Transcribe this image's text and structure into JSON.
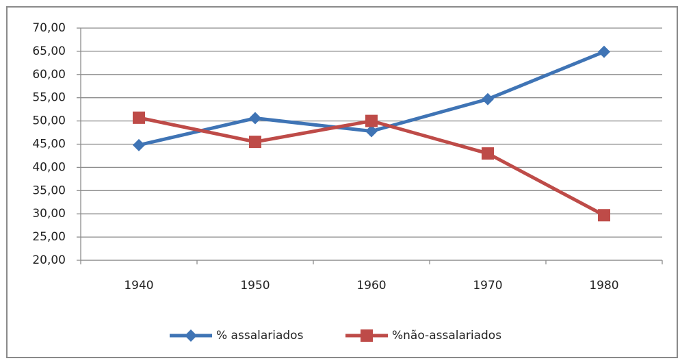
{
  "chart_data": {
    "type": "line",
    "categories": [
      "1940",
      "1950",
      "1960",
      "1970",
      "1980"
    ],
    "series": [
      {
        "name": "% assalariados",
        "color": "#3f74b5",
        "marker": "diamond",
        "values": [
          44.8,
          50.6,
          47.8,
          54.7,
          64.9
        ]
      },
      {
        "name": "%não-assalariados",
        "color": "#be4b48",
        "marker": "square",
        "values": [
          50.7,
          45.5,
          50.0,
          43.0,
          29.7
        ]
      }
    ],
    "ylim": [
      20,
      70
    ],
    "yticks": [
      {
        "value": 20,
        "label": "20,00"
      },
      {
        "value": 25,
        "label": "25,00"
      },
      {
        "value": 30,
        "label": "30,00"
      },
      {
        "value": 35,
        "label": "35,00"
      },
      {
        "value": 40,
        "label": "40,00"
      },
      {
        "value": 45,
        "label": "45,00"
      },
      {
        "value": 50,
        "label": "50,00"
      },
      {
        "value": 55,
        "label": "55,00"
      },
      {
        "value": 60,
        "label": "60,00"
      },
      {
        "value": 65,
        "label": "65,00"
      },
      {
        "value": 70,
        "label": "70,00"
      }
    ],
    "grid": true,
    "legend": "bottom"
  }
}
